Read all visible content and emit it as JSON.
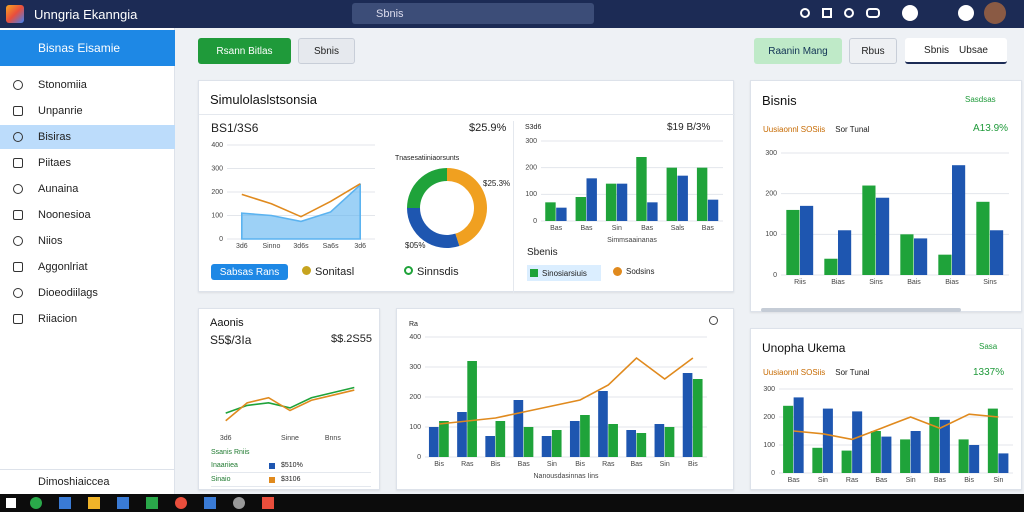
{
  "topbar": {
    "app_name": "Unngria Ekanngia",
    "search": "Sbnis"
  },
  "sidebar": {
    "header": "Bisnas Eisamie",
    "items": [
      "Stonomiia",
      "Unpanrie",
      "Bisiras",
      "Piitaes",
      "Aunaina",
      "Noonesioa",
      "Niios",
      "Aggonlriat",
      "Dioeodiilags",
      "Riiacion"
    ],
    "footer": "Dimoshiaiccea"
  },
  "toolbar": {
    "primary": "Rsann Bitlas",
    "secondary": "Sbnis",
    "right_green": "Raanin Mang",
    "right_button": "Rbus",
    "right_tab": "Sbnis",
    "right_tab2": "Ubsae"
  },
  "summary": {
    "title": "Simulolaslstsonsia",
    "left_value": "BS1/3S6",
    "left_change": "$25.9%",
    "line_chart": {
      "type": "line",
      "categories": [
        "3d6",
        "Sinno",
        "3d6s",
        "Sa6s",
        "3d6"
      ],
      "ylim": [
        0,
        400
      ],
      "yticks": [
        0,
        100,
        200,
        300,
        400
      ],
      "series": [
        {
          "type": "area",
          "color": "#5bb3f0",
          "values": [
            110,
            100,
            75,
            115,
            230
          ]
        },
        {
          "type": "line",
          "color": "#e08a1e",
          "values": [
            190,
            150,
            95,
            160,
            235
          ]
        }
      ]
    },
    "buttons": [
      "Sabsas Rans",
      "Sonitasl",
      "Sinnsdis"
    ],
    "donut_title": "Tnasesatiiniaorsunts",
    "donut": {
      "type": "pie",
      "values": [
        45,
        30,
        25
      ],
      "colors": [
        "#f0a020",
        "#1e56b0",
        "#1fa33a"
      ]
    },
    "donut_labels": [
      "$25.3%",
      "$05%"
    ],
    "bar_title": "S3d6",
    "bar_value": "$19 B/3%",
    "bar_chart": {
      "type": "bar",
      "categories": [
        "Bas",
        "Bas",
        "Sin",
        "Bas",
        "Sals",
        "Bas"
      ],
      "x_label": "Simmsaainanas",
      "ylim": [
        0,
        300
      ],
      "yticks": [
        0,
        100,
        200,
        300
      ],
      "series": [
        {
          "color": "#1fa33a",
          "values": [
            70,
            90,
            140,
            240,
            200,
            200
          ]
        },
        {
          "color": "#1e56b0",
          "values": [
            50,
            160,
            140,
            70,
            170,
            80
          ]
        }
      ]
    },
    "bar_legend_title": "Sbenis",
    "bar_legend": [
      "Sinosiarsiuis",
      "Sodsins"
    ]
  },
  "bisnis": {
    "title": "Bisnis",
    "link": "Sasdsas",
    "value": "A13.9%",
    "chart": {
      "type": "bar",
      "categories": [
        "Riis",
        "Bias",
        "Sins",
        "Bais",
        "Bias",
        "Sins"
      ],
      "ylim": [
        0,
        300
      ],
      "yticks": [
        0,
        100,
        200,
        300
      ],
      "series": [
        {
          "name": "Uusiaonnl SOSiis",
          "color": "#1fa33a",
          "values": [
            160,
            40,
            220,
            100,
            50,
            180
          ]
        },
        {
          "name": "Sor Tunal",
          "color": "#1e56b0",
          "values": [
            170,
            110,
            190,
            90,
            270,
            110
          ]
        }
      ]
    }
  },
  "aaonis": {
    "title": "Aaonis",
    "value": "S5$/3Ia",
    "right_value": "$$.2S55",
    "chart": {
      "type": "line",
      "categories": [
        "3d6",
        null,
        null,
        "Sinne",
        null,
        "Bnns",
        null
      ],
      "ylim": [
        0,
        250
      ],
      "series": [
        {
          "color": "#1fa33a",
          "values": [
            70,
            100,
            110,
            90,
            130,
            150,
            170
          ]
        },
        {
          "color": "#e08a1e",
          "values": [
            40,
            110,
            130,
            80,
            120,
            140,
            160
          ]
        }
      ]
    },
    "legend_head": "Ssanis Rniis",
    "legend": [
      {
        "name": "Inaariiea",
        "value": "$510%"
      },
      {
        "name": "Sinaio",
        "value": "$3106"
      }
    ]
  },
  "trend": {
    "axis_label": "Ra",
    "chart": {
      "type": "bar",
      "categories": [
        "Bis",
        "Ras",
        "Bis",
        "Bas",
        "Sin",
        "Bis",
        "Ras",
        "Bas",
        "Sin",
        "Bis"
      ],
      "x_label": "Nanousdasinnas Iins",
      "ylim": [
        0,
        400
      ],
      "yticks": [
        0,
        100,
        200,
        300,
        400
      ],
      "series": [
        {
          "color": "#1e56b0",
          "values": [
            100,
            150,
            70,
            190,
            70,
            120,
            220,
            90,
            110,
            280
          ]
        },
        {
          "color": "#1fa33a",
          "values": [
            120,
            320,
            120,
            100,
            90,
            140,
            110,
            80,
            100,
            260
          ]
        },
        {
          "type": "line",
          "color": "#e08a1e",
          "values": [
            110,
            120,
            130,
            150,
            170,
            190,
            240,
            330,
            260,
            330
          ]
        }
      ]
    }
  },
  "unopha": {
    "title": "Unopha Ukema",
    "link": "Sasa",
    "value": "1337%",
    "chart": {
      "type": "bar",
      "categories": [
        "Bas",
        "Sin",
        "Ras",
        "Bas",
        "Sin",
        "Bas",
        "Bis",
        "Sin"
      ],
      "ylim": [
        0,
        300
      ],
      "yticks": [
        0,
        100,
        200,
        300
      ],
      "series": [
        {
          "name": "Uusiaonnl SOSiis",
          "color": "#1fa33a",
          "values": [
            240,
            90,
            80,
            150,
            120,
            200,
            120,
            230
          ]
        },
        {
          "name": "Sor Tunal",
          "color": "#1e56b0",
          "values": [
            270,
            230,
            220,
            130,
            150,
            190,
            100,
            70
          ]
        },
        {
          "type": "line",
          "color": "#e08a1e",
          "values": [
            150,
            140,
            120,
            160,
            200,
            160,
            210,
            200
          ]
        }
      ]
    }
  }
}
